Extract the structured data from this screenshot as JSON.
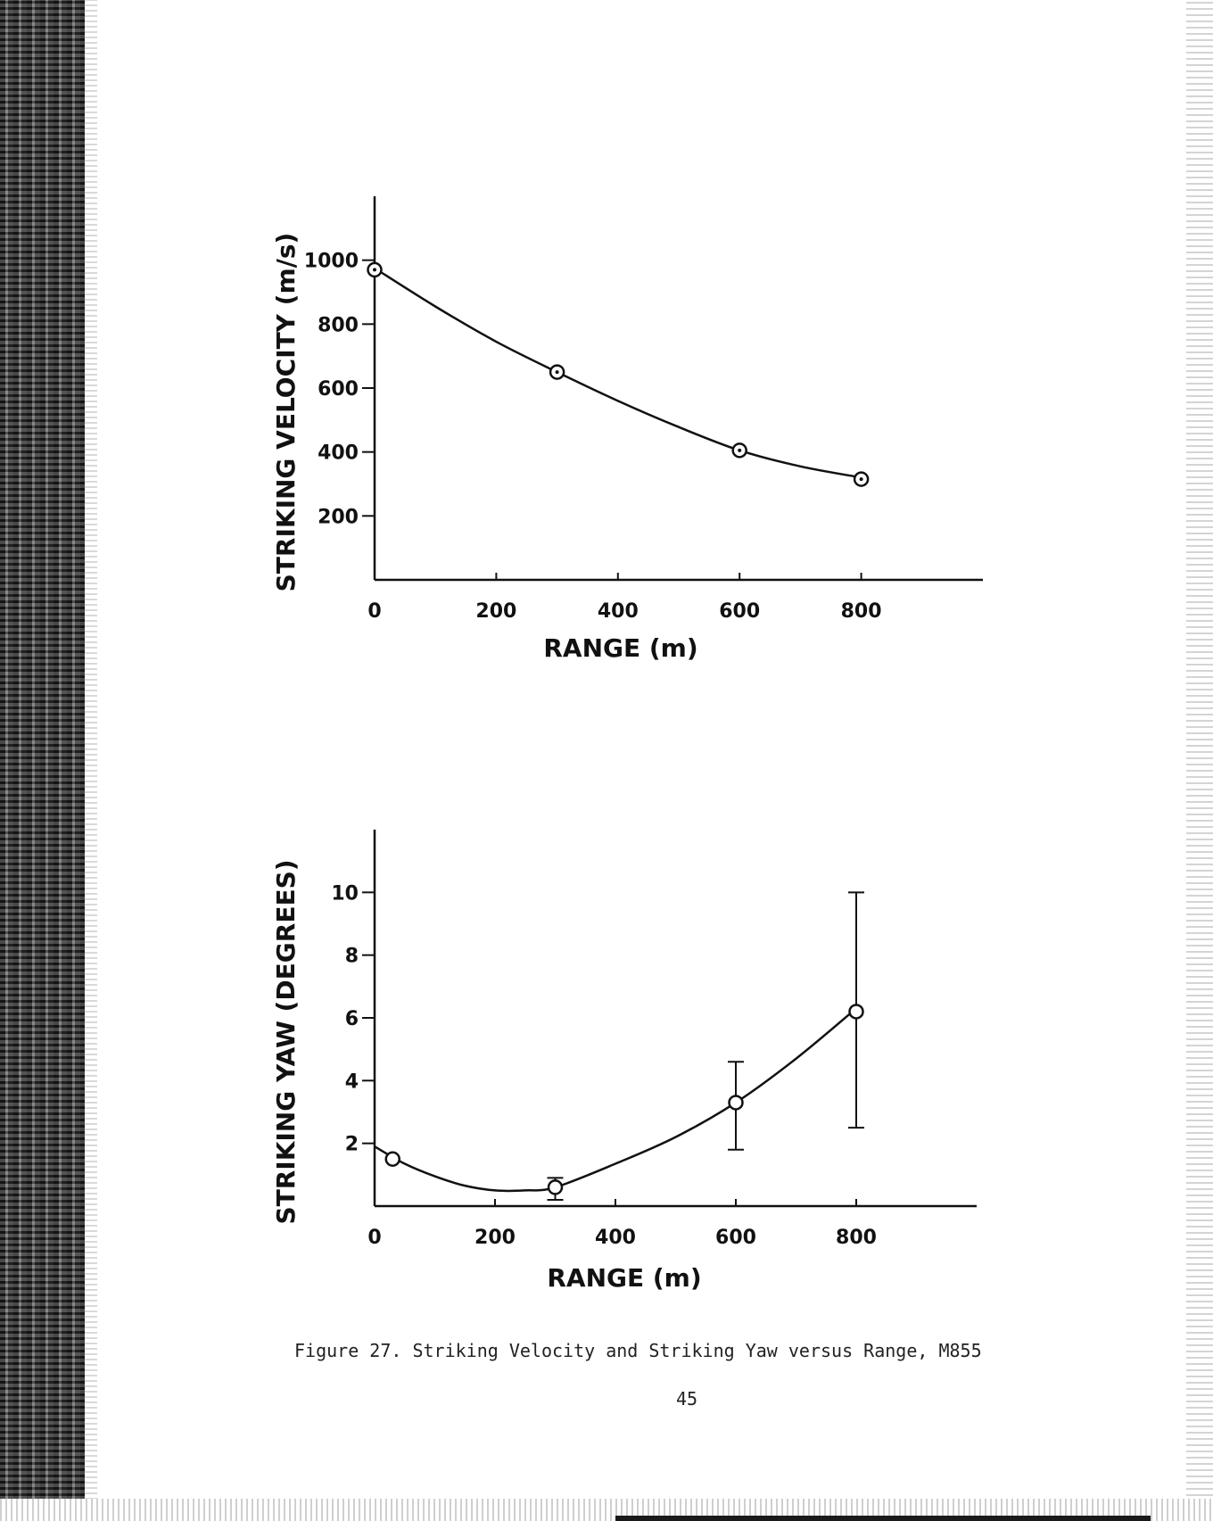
{
  "figure": {
    "caption": "Figure 27.  Striking Velocity and Striking Yaw versus Range, M855",
    "page_number": "45"
  },
  "colors": {
    "ink": "#111111",
    "paper": "#ffffff"
  },
  "chart_data": [
    {
      "type": "line",
      "title": "",
      "xlabel": "RANGE  (m)",
      "ylabel": "STRIKING  VELOCITY  (m/s)",
      "xlim": [
        0,
        1000
      ],
      "ylim": [
        0,
        1200
      ],
      "xticks": [
        0,
        200,
        400,
        600,
        800
      ],
      "yticks": [
        200,
        400,
        600,
        800,
        1000
      ],
      "grid": false,
      "series": [
        {
          "name": "Striking Velocity",
          "markers": "circle-dot",
          "x": [
            0,
            300,
            600,
            800
          ],
          "values": [
            970,
            650,
            405,
            315
          ]
        }
      ],
      "curve": {
        "x": [
          0,
          100,
          200,
          300,
          400,
          500,
          600,
          700,
          800
        ],
        "values": [
          975,
          855,
          745,
          650,
          560,
          478,
          405,
          355,
          320
        ]
      }
    },
    {
      "type": "line",
      "title": "",
      "xlabel": "RANGE  (m)",
      "ylabel": "STRIKING  YAW  (DEGREES)",
      "xlim": [
        0,
        1000
      ],
      "ylim": [
        0,
        12
      ],
      "xticks": [
        0,
        200,
        400,
        600,
        800
      ],
      "yticks": [
        2,
        4,
        6,
        8,
        10
      ],
      "grid": false,
      "series": [
        {
          "name": "Striking Yaw",
          "markers": "open-circle",
          "x": [
            30,
            300,
            600,
            800
          ],
          "values": [
            1.5,
            0.6,
            3.3,
            6.2
          ],
          "err_low": [
            1.5,
            0.2,
            1.8,
            2.5
          ],
          "err_high": [
            1.5,
            0.9,
            4.6,
            10.0
          ]
        }
      ],
      "curve": {
        "x": [
          0,
          50,
          100,
          150,
          200,
          250,
          300,
          400,
          500,
          600,
          700,
          800
        ],
        "values": [
          1.9,
          1.35,
          0.95,
          0.65,
          0.5,
          0.5,
          0.6,
          1.35,
          2.2,
          3.3,
          4.7,
          6.3
        ]
      }
    }
  ]
}
